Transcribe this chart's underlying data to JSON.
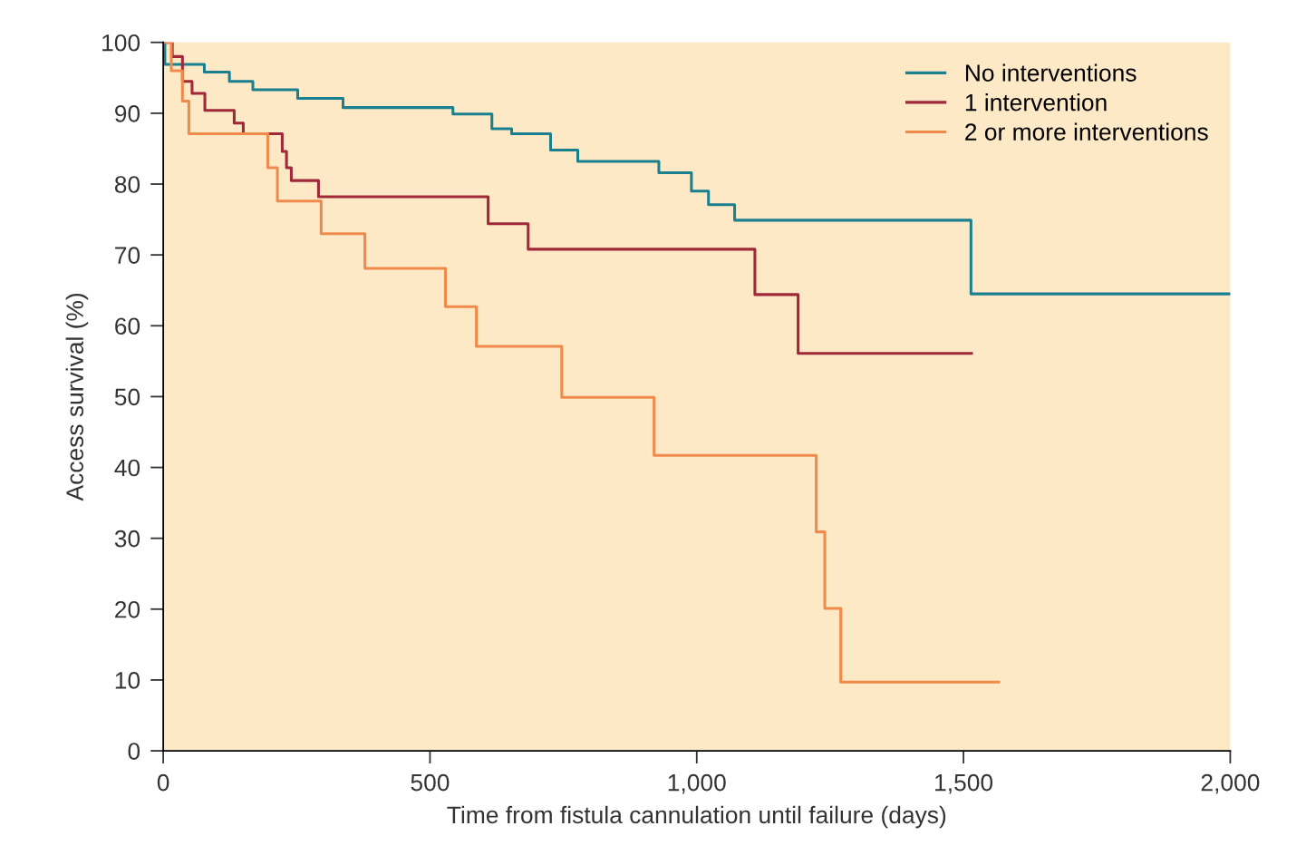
{
  "chart_data": {
    "type": "step",
    "xlabel": "Time from fistula cannulation until failure (days)",
    "ylabel": "Access survival (%)",
    "xlim": [
      0,
      2000
    ],
    "xticks": [
      0,
      {
        "value": 500,
        "label": "500"
      },
      {
        "value": 1000,
        "label": "1,000"
      },
      {
        "value": 1500,
        "label": "1,500"
      },
      {
        "value": 2000,
        "label": "2,000"
      }
    ],
    "ylim": [
      0,
      100
    ],
    "yticks": [
      0,
      10,
      20,
      30,
      40,
      50,
      60,
      70,
      80,
      90,
      100
    ],
    "grid": false,
    "legend": "top right",
    "marker": "none",
    "line_style": "solid",
    "series": [
      {
        "name": "No interventions",
        "color": "#1a8090",
        "x": [
          0,
          3,
          77,
          124,
          168,
          252,
          337,
          543,
          616,
          653,
          726,
          777,
          929,
          990,
          1022,
          1071,
          1514,
          2000
        ],
        "values": [
          100,
          96.9,
          95.8,
          94.5,
          93.3,
          92.1,
          90.8,
          89.9,
          87.8,
          87.1,
          84.8,
          83.2,
          81.6,
          79.0,
          77.1,
          74.9,
          64.5,
          64.5
        ]
      },
      {
        "name": "1 intervention",
        "color": "#a02838",
        "x": [
          0,
          17,
          36,
          54,
          78,
          133,
          150,
          223,
          231,
          240,
          291,
          609,
          684,
          1109,
          1190,
          1515
        ],
        "values": [
          100,
          98,
          94.5,
          92.8,
          90.4,
          88.6,
          87.1,
          84.6,
          82.3,
          80.5,
          78.2,
          74.4,
          70.8,
          64.4,
          56.1,
          56.1
        ]
      },
      {
        "name": "2 or more interventions",
        "color": "#f08a4a",
        "x": [
          0,
          15,
          36,
          48,
          196,
          214,
          296,
          378,
          529,
          587,
          747,
          920,
          1224,
          1240,
          1270,
          1566
        ],
        "values": [
          100,
          96.0,
          91.7,
          87.1,
          82.3,
          77.6,
          73.0,
          68.1,
          62.7,
          57.1,
          49.9,
          41.7,
          30.9,
          20.1,
          9.7,
          9.7
        ]
      }
    ]
  }
}
